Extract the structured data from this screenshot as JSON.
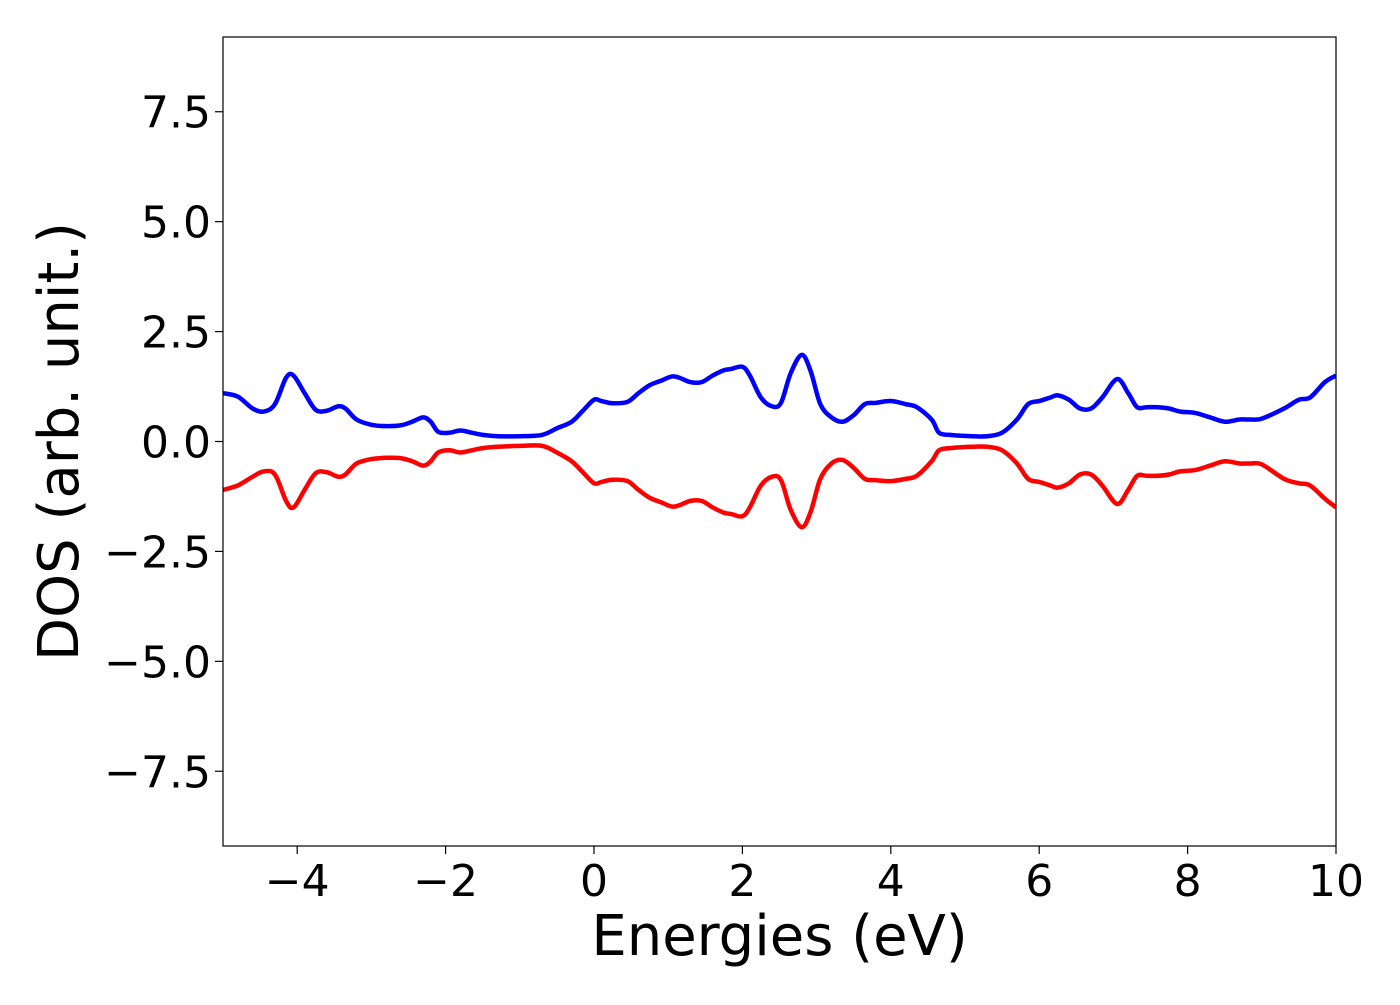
{
  "chart_data": {
    "type": "line",
    "title": "",
    "xlabel": "Energies (eV)",
    "ylabel": "DOS (arb. unit.)",
    "xlim": [
      -5,
      10
    ],
    "ylim": [
      -9.2,
      9.2
    ],
    "x_ticks": [
      -4,
      -2,
      0,
      2,
      4,
      6,
      8,
      10
    ],
    "x_tick_labels": [
      "−4",
      "−2",
      "0",
      "2",
      "4",
      "6",
      "8",
      "10"
    ],
    "y_ticks": [
      7.5,
      5.0,
      2.5,
      0.0,
      -2.5,
      -5.0,
      -7.5
    ],
    "y_tick_labels": [
      "7.5",
      "5.0",
      "2.5",
      "0.0",
      "−2.5",
      "−5.0",
      "−7.5"
    ],
    "grid": false,
    "legend": "none",
    "series": [
      {
        "color": "#0000ff",
        "x": [
          -5.0,
          -4.8,
          -4.6,
          -4.45,
          -4.3,
          -4.15,
          -4.05,
          -3.9,
          -3.75,
          -3.6,
          -3.45,
          -3.35,
          -3.2,
          -3.0,
          -2.8,
          -2.6,
          -2.45,
          -2.3,
          -2.2,
          -2.1,
          -1.95,
          -1.8,
          -1.65,
          -1.5,
          -1.3,
          -1.0,
          -0.7,
          -0.5,
          -0.3,
          -0.15,
          0.0,
          0.1,
          0.25,
          0.45,
          0.6,
          0.75,
          0.9,
          1.05,
          1.15,
          1.3,
          1.45,
          1.6,
          1.75,
          1.85,
          2.0,
          2.1,
          2.25,
          2.4,
          2.52,
          2.65,
          2.8,
          2.92,
          3.05,
          3.2,
          3.35,
          3.5,
          3.65,
          3.8,
          4.0,
          4.2,
          4.35,
          4.55,
          4.65,
          4.8,
          4.95,
          5.1,
          5.3,
          5.5,
          5.7,
          5.85,
          6.0,
          6.15,
          6.25,
          6.4,
          6.55,
          6.7,
          6.85,
          7.05,
          7.2,
          7.32,
          7.45,
          7.6,
          7.75,
          7.9,
          8.1,
          8.3,
          8.5,
          8.7,
          8.85,
          9.0,
          9.3,
          9.5,
          9.65,
          9.85,
          10.0
        ],
        "y": [
          1.1,
          1.02,
          0.75,
          0.68,
          0.85,
          1.45,
          1.5,
          1.1,
          0.72,
          0.7,
          0.8,
          0.75,
          0.5,
          0.38,
          0.35,
          0.37,
          0.45,
          0.55,
          0.45,
          0.22,
          0.2,
          0.25,
          0.2,
          0.15,
          0.12,
          0.12,
          0.15,
          0.3,
          0.45,
          0.7,
          0.95,
          0.92,
          0.87,
          0.9,
          1.1,
          1.28,
          1.38,
          1.48,
          1.45,
          1.35,
          1.35,
          1.5,
          1.62,
          1.65,
          1.7,
          1.5,
          1.0,
          0.8,
          0.88,
          1.55,
          1.97,
          1.6,
          0.85,
          0.55,
          0.45,
          0.6,
          0.85,
          0.88,
          0.92,
          0.85,
          0.78,
          0.5,
          0.2,
          0.15,
          0.13,
          0.12,
          0.12,
          0.2,
          0.5,
          0.85,
          0.92,
          1.0,
          1.05,
          0.95,
          0.75,
          0.75,
          1.0,
          1.42,
          1.1,
          0.78,
          0.78,
          0.78,
          0.75,
          0.68,
          0.65,
          0.55,
          0.45,
          0.5,
          0.5,
          0.52,
          0.75,
          0.95,
          1.0,
          1.35,
          1.5
        ]
      },
      {
        "color": "#ff0000",
        "x": [
          -5.0,
          -4.8,
          -4.6,
          -4.45,
          -4.3,
          -4.15,
          -4.05,
          -3.9,
          -3.75,
          -3.6,
          -3.45,
          -3.35,
          -3.2,
          -3.0,
          -2.8,
          -2.6,
          -2.45,
          -2.3,
          -2.2,
          -2.1,
          -1.95,
          -1.8,
          -1.65,
          -1.5,
          -1.3,
          -1.0,
          -0.7,
          -0.5,
          -0.3,
          -0.15,
          0.0,
          0.1,
          0.25,
          0.45,
          0.6,
          0.75,
          0.9,
          1.05,
          1.15,
          1.3,
          1.45,
          1.6,
          1.75,
          1.85,
          2.0,
          2.1,
          2.25,
          2.4,
          2.52,
          2.65,
          2.8,
          2.92,
          3.05,
          3.2,
          3.35,
          3.5,
          3.65,
          3.8,
          4.0,
          4.2,
          4.35,
          4.55,
          4.65,
          4.8,
          4.95,
          5.1,
          5.3,
          5.5,
          5.7,
          5.85,
          6.0,
          6.15,
          6.25,
          6.4,
          6.55,
          6.7,
          6.85,
          7.05,
          7.2,
          7.32,
          7.45,
          7.6,
          7.75,
          7.9,
          8.1,
          8.3,
          8.5,
          8.7,
          8.85,
          9.0,
          9.3,
          9.5,
          9.65,
          9.85,
          10.0
        ],
        "y": [
          -1.1,
          -1.0,
          -0.8,
          -0.68,
          -0.75,
          -1.35,
          -1.5,
          -1.1,
          -0.72,
          -0.7,
          -0.8,
          -0.75,
          -0.5,
          -0.4,
          -0.37,
          -0.38,
          -0.45,
          -0.55,
          -0.45,
          -0.25,
          -0.2,
          -0.25,
          -0.2,
          -0.15,
          -0.12,
          -0.1,
          -0.1,
          -0.25,
          -0.45,
          -0.7,
          -0.95,
          -0.92,
          -0.87,
          -0.9,
          -1.1,
          -1.28,
          -1.38,
          -1.48,
          -1.45,
          -1.35,
          -1.35,
          -1.5,
          -1.62,
          -1.65,
          -1.7,
          -1.5,
          -1.0,
          -0.8,
          -0.88,
          -1.55,
          -1.95,
          -1.6,
          -0.85,
          -0.5,
          -0.42,
          -0.6,
          -0.85,
          -0.88,
          -0.9,
          -0.85,
          -0.78,
          -0.45,
          -0.2,
          -0.15,
          -0.13,
          -0.12,
          -0.12,
          -0.2,
          -0.5,
          -0.85,
          -0.92,
          -1.0,
          -1.05,
          -0.95,
          -0.75,
          -0.75,
          -1.0,
          -1.42,
          -1.1,
          -0.78,
          -0.78,
          -0.78,
          -0.75,
          -0.68,
          -0.65,
          -0.55,
          -0.45,
          -0.5,
          -0.5,
          -0.52,
          -0.85,
          -0.95,
          -1.0,
          -1.3,
          -1.5
        ]
      }
    ]
  }
}
